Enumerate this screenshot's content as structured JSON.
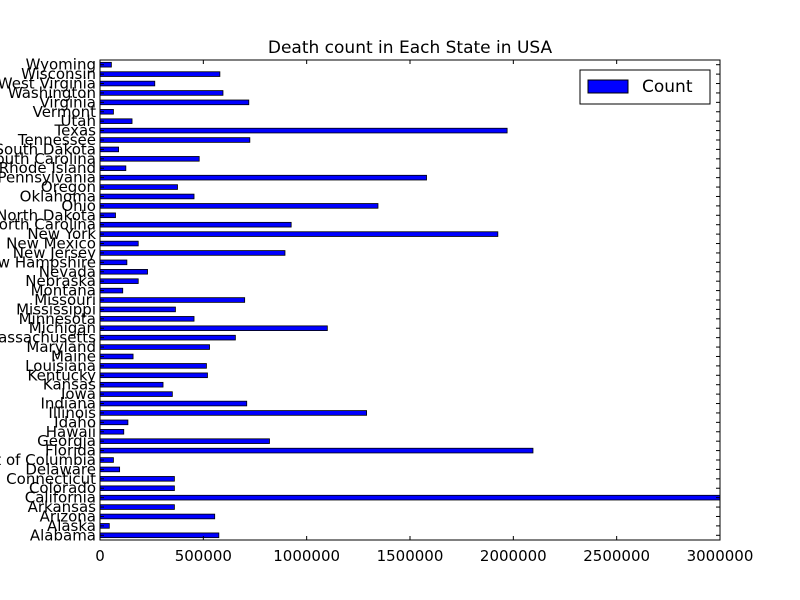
{
  "chart_data": {
    "type": "bar",
    "orientation": "horizontal",
    "title": "Death count in Each State in USA",
    "xlabel": "",
    "ylabel": "",
    "xlim": [
      0,
      3000000
    ],
    "x_ticks": [
      0,
      500000,
      1000000,
      1500000,
      2000000,
      2500000,
      3000000
    ],
    "x_tick_labels": [
      "0",
      "500000",
      "1000000",
      "1500000",
      "2000000",
      "2500000",
      "3000000"
    ],
    "grid": false,
    "legend_position": "top-right",
    "bar_color": "#0000ff",
    "series": [
      {
        "name": "Count",
        "categories": [
          "Alabama",
          "Alaska",
          "Arizona",
          "Arkansas",
          "California",
          "Colorado",
          "Connecticut",
          "Delaware",
          "District of Columbia",
          "Florida",
          "Georgia",
          "Hawaii",
          "Idaho",
          "Illinois",
          "Indiana",
          "Iowa",
          "Kansas",
          "Kentucky",
          "Louisiana",
          "Maine",
          "Maryland",
          "Massachusetts",
          "Michigan",
          "Minnesota",
          "Mississippi",
          "Missouri",
          "Montana",
          "Nebraska",
          "Nevada",
          "New Hampshire",
          "New Jersey",
          "New Mexico",
          "New York",
          "North Carolina",
          "North Dakota",
          "Ohio",
          "Oklahoma",
          "Oregon",
          "Pennsylvania",
          "Rhode Island",
          "South Carolina",
          "South Dakota",
          "Tennessee",
          "Texas",
          "Utah",
          "Vermont",
          "Virginia",
          "Washington",
          "West Virginia",
          "Wisconsin",
          "Wyoming"
        ],
        "values": [
          575000,
          45000,
          555000,
          360000,
          3000000,
          360000,
          360000,
          95000,
          65000,
          2095000,
          820000,
          115000,
          135000,
          1290000,
          710000,
          350000,
          305000,
          520000,
          515000,
          160000,
          530000,
          655000,
          1100000,
          455000,
          365000,
          700000,
          110000,
          185000,
          230000,
          130000,
          895000,
          185000,
          1925000,
          925000,
          75000,
          1345000,
          455000,
          375000,
          1580000,
          125000,
          480000,
          90000,
          725000,
          1970000,
          155000,
          65000,
          720000,
          595000,
          265000,
          580000,
          55000
        ]
      }
    ]
  }
}
